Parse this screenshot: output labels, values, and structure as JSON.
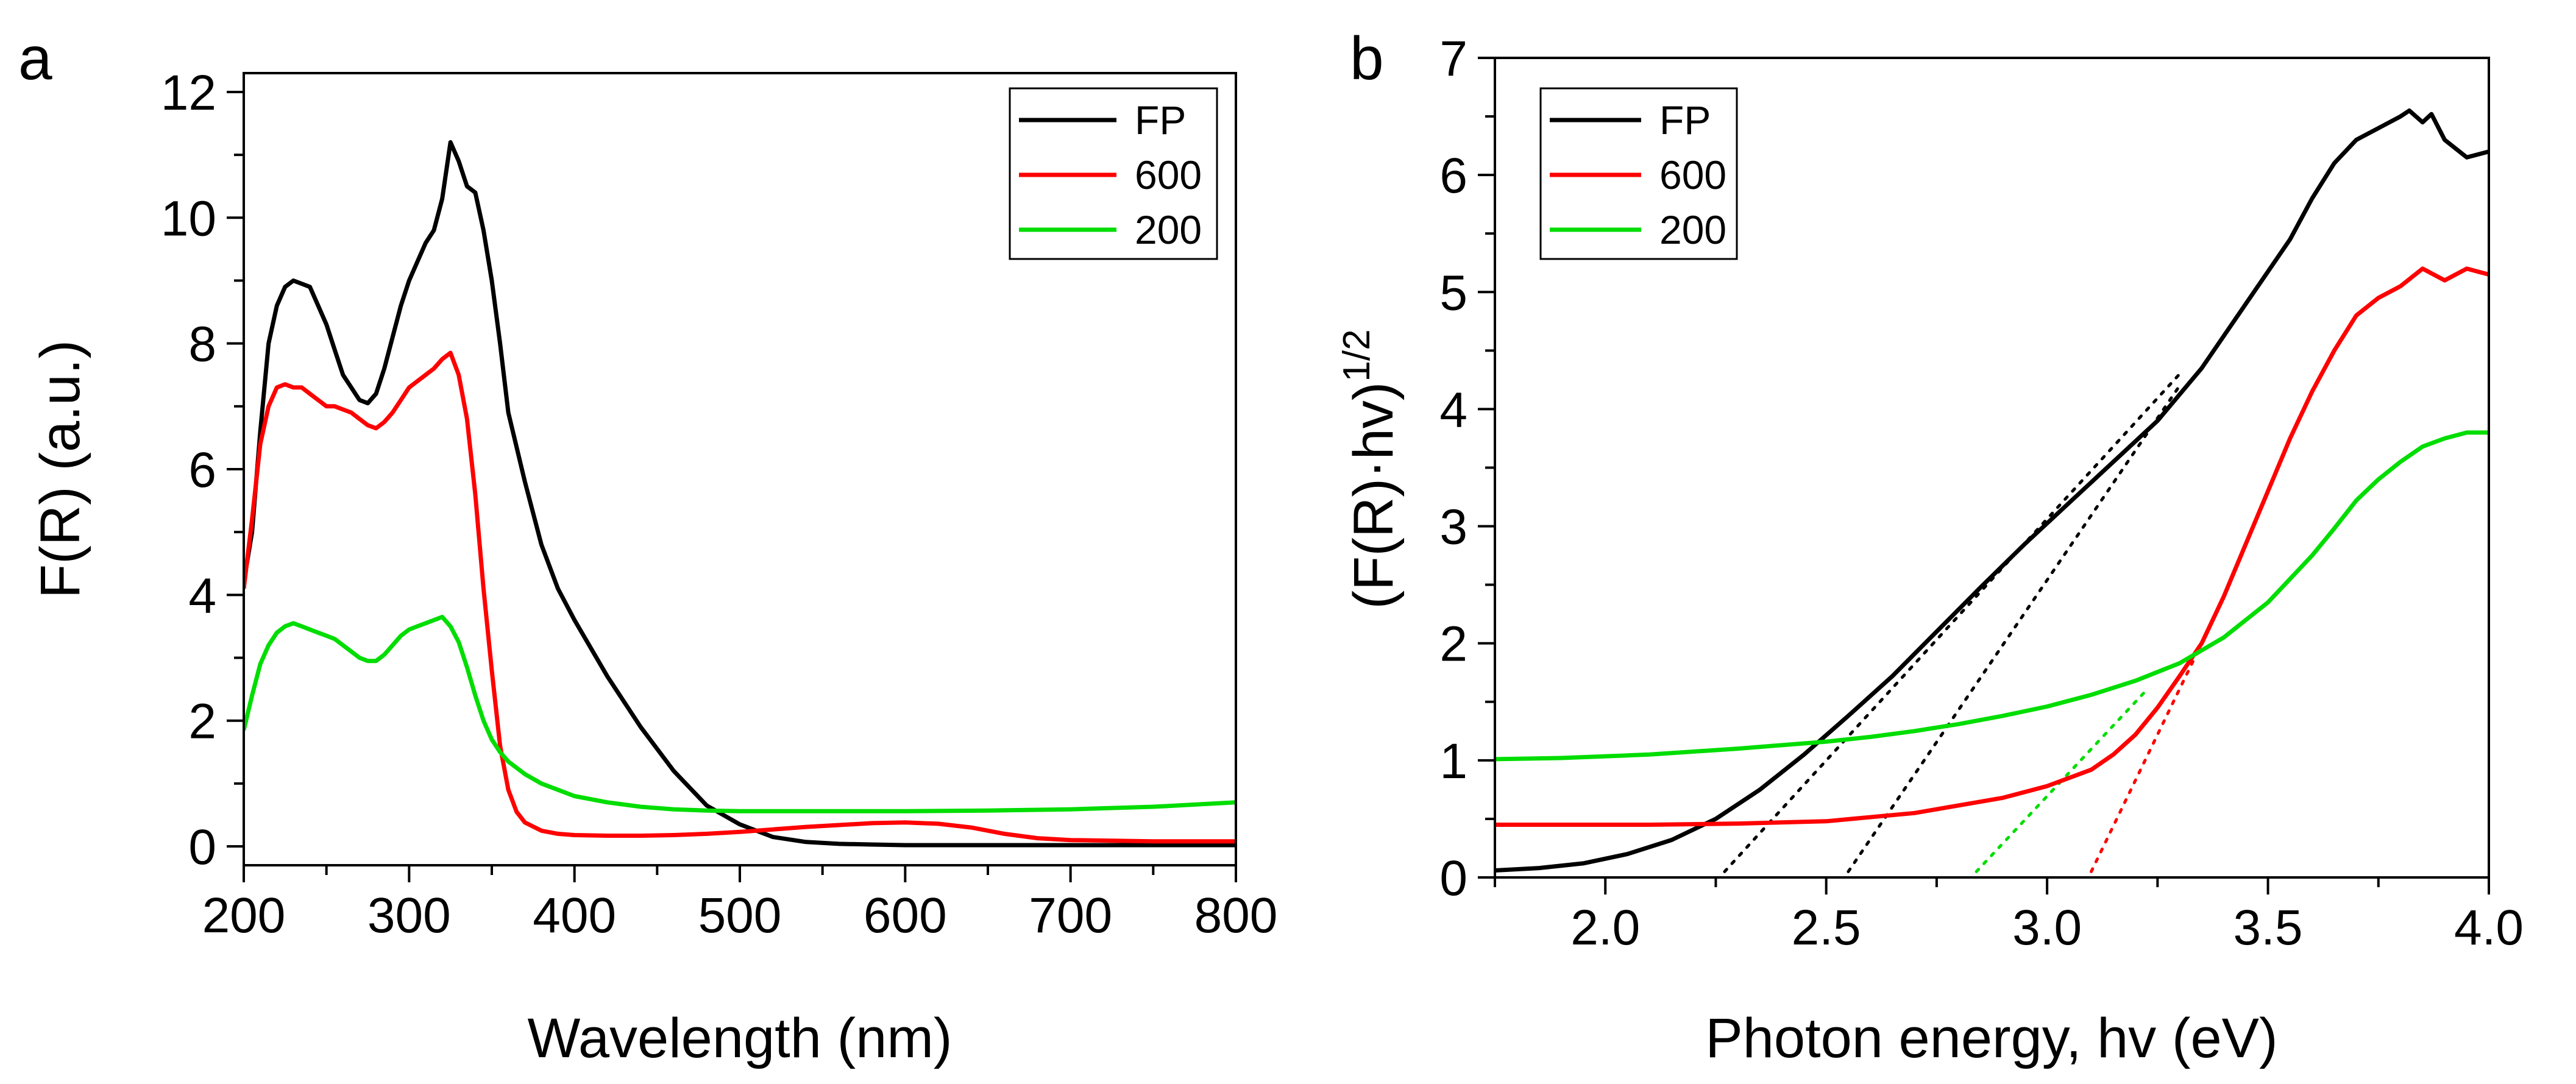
{
  "chart_data": [
    {
      "type": "line",
      "panel_label": "a",
      "title": "",
      "xlabel": "Wavelength (nm)",
      "ylabel": "F(R) (a.u.)",
      "xlim": [
        200,
        800
      ],
      "ylim": [
        -0.3,
        12.3
      ],
      "xticks": [
        200,
        300,
        400,
        500,
        600,
        700,
        800
      ],
      "yticks": [
        0,
        2,
        4,
        6,
        8,
        10,
        12
      ],
      "grid": false,
      "legend_position": "top-right",
      "series": [
        {
          "name": "FP",
          "color": "#000000",
          "x": [
            200,
            205,
            210,
            215,
            220,
            225,
            230,
            235,
            240,
            245,
            250,
            255,
            260,
            265,
            270,
            275,
            280,
            285,
            290,
            295,
            300,
            305,
            310,
            315,
            320,
            325,
            330,
            335,
            340,
            345,
            350,
            355,
            360,
            370,
            380,
            390,
            400,
            420,
            440,
            460,
            480,
            500,
            520,
            540,
            560,
            580,
            600,
            650,
            700,
            750,
            800
          ],
          "y": [
            4.2,
            5.0,
            6.6,
            8.0,
            8.6,
            8.9,
            9.0,
            8.95,
            8.9,
            8.6,
            8.3,
            7.9,
            7.5,
            7.3,
            7.1,
            7.05,
            7.2,
            7.6,
            8.1,
            8.6,
            9.0,
            9.3,
            9.6,
            9.8,
            10.3,
            11.2,
            10.9,
            10.5,
            10.4,
            9.8,
            9.0,
            8.0,
            6.9,
            5.8,
            4.8,
            4.1,
            3.6,
            2.7,
            1.9,
            1.2,
            0.65,
            0.35,
            0.15,
            0.07,
            0.04,
            0.03,
            0.02,
            0.02,
            0.02,
            0.02,
            0.02
          ]
        },
        {
          "name": "600",
          "color": "#ff0000",
          "x": [
            200,
            205,
            210,
            215,
            220,
            225,
            230,
            235,
            240,
            245,
            250,
            255,
            260,
            265,
            270,
            275,
            280,
            285,
            290,
            295,
            300,
            305,
            310,
            315,
            320,
            325,
            330,
            335,
            340,
            345,
            350,
            355,
            360,
            365,
            370,
            380,
            390,
            400,
            420,
            440,
            460,
            480,
            500,
            520,
            540,
            560,
            580,
            600,
            620,
            640,
            660,
            680,
            700,
            750,
            800
          ],
          "y": [
            4.1,
            5.2,
            6.4,
            7.0,
            7.3,
            7.35,
            7.3,
            7.3,
            7.2,
            7.1,
            7.0,
            7.0,
            6.95,
            6.9,
            6.8,
            6.7,
            6.65,
            6.75,
            6.9,
            7.1,
            7.3,
            7.4,
            7.5,
            7.6,
            7.75,
            7.85,
            7.5,
            6.8,
            5.6,
            4.1,
            2.8,
            1.6,
            0.9,
            0.55,
            0.38,
            0.25,
            0.2,
            0.18,
            0.17,
            0.17,
            0.18,
            0.2,
            0.23,
            0.27,
            0.31,
            0.34,
            0.37,
            0.38,
            0.36,
            0.3,
            0.2,
            0.13,
            0.1,
            0.08,
            0.08
          ]
        },
        {
          "name": "200",
          "color": "#00dd00",
          "x": [
            200,
            205,
            210,
            215,
            220,
            225,
            230,
            235,
            240,
            245,
            250,
            255,
            260,
            265,
            270,
            275,
            280,
            285,
            290,
            295,
            300,
            305,
            310,
            315,
            320,
            325,
            330,
            335,
            340,
            345,
            350,
            355,
            360,
            370,
            380,
            390,
            400,
            420,
            440,
            460,
            480,
            500,
            520,
            540,
            560,
            580,
            600,
            650,
            700,
            750,
            800
          ],
          "y": [
            1.85,
            2.4,
            2.9,
            3.2,
            3.4,
            3.5,
            3.55,
            3.5,
            3.45,
            3.4,
            3.35,
            3.3,
            3.2,
            3.1,
            3.0,
            2.95,
            2.95,
            3.05,
            3.2,
            3.35,
            3.45,
            3.5,
            3.55,
            3.6,
            3.65,
            3.5,
            3.25,
            2.85,
            2.4,
            2.0,
            1.7,
            1.5,
            1.35,
            1.15,
            1.0,
            0.9,
            0.8,
            0.7,
            0.63,
            0.59,
            0.57,
            0.56,
            0.56,
            0.56,
            0.56,
            0.56,
            0.56,
            0.57,
            0.59,
            0.63,
            0.7
          ]
        }
      ]
    },
    {
      "type": "line",
      "panel_label": "b",
      "title": "",
      "xlabel": "Photon energy, hv (eV)",
      "ylabel": "(F(R)·hv)",
      "ylabel_superscript": "1/2",
      "xlim": [
        1.75,
        4.0
      ],
      "ylim": [
        0,
        7
      ],
      "xticks": [
        "2.0",
        "2.5",
        "3.0",
        "3.5",
        "4.0"
      ],
      "yticks": [
        0,
        1,
        2,
        3,
        4,
        5,
        6,
        7
      ],
      "grid": false,
      "legend_position": "top-left",
      "series": [
        {
          "name": "FP",
          "color": "#000000",
          "x": [
            1.75,
            1.85,
            1.95,
            2.05,
            2.15,
            2.25,
            2.35,
            2.45,
            2.55,
            2.65,
            2.75,
            2.85,
            2.95,
            3.05,
            3.15,
            3.25,
            3.35,
            3.45,
            3.55,
            3.6,
            3.65,
            3.7,
            3.75,
            3.8,
            3.82,
            3.85,
            3.87,
            3.9,
            3.95,
            4.0
          ],
          "y": [
            0.06,
            0.08,
            0.12,
            0.2,
            0.32,
            0.5,
            0.75,
            1.05,
            1.38,
            1.72,
            2.1,
            2.48,
            2.85,
            3.2,
            3.55,
            3.9,
            4.35,
            4.9,
            5.45,
            5.8,
            6.1,
            6.3,
            6.4,
            6.5,
            6.55,
            6.45,
            6.52,
            6.3,
            6.15,
            6.2
          ]
        },
        {
          "name": "600",
          "color": "#ff0000",
          "x": [
            1.75,
            1.9,
            2.1,
            2.3,
            2.5,
            2.7,
            2.9,
            3.0,
            3.1,
            3.15,
            3.2,
            3.25,
            3.3,
            3.35,
            3.4,
            3.45,
            3.5,
            3.55,
            3.6,
            3.65,
            3.7,
            3.75,
            3.8,
            3.85,
            3.9,
            3.95,
            4.0
          ],
          "y": [
            0.45,
            0.45,
            0.45,
            0.46,
            0.48,
            0.55,
            0.68,
            0.78,
            0.92,
            1.05,
            1.22,
            1.45,
            1.72,
            2.0,
            2.4,
            2.85,
            3.3,
            3.75,
            4.15,
            4.5,
            4.8,
            4.95,
            5.05,
            5.2,
            5.1,
            5.2,
            5.15
          ]
        },
        {
          "name": "200",
          "color": "#00dd00",
          "x": [
            1.75,
            1.9,
            2.1,
            2.3,
            2.5,
            2.6,
            2.7,
            2.8,
            2.9,
            3.0,
            3.1,
            3.2,
            3.3,
            3.4,
            3.5,
            3.6,
            3.65,
            3.7,
            3.75,
            3.8,
            3.85,
            3.9,
            3.95,
            4.0
          ],
          "y": [
            1.01,
            1.02,
            1.05,
            1.1,
            1.16,
            1.2,
            1.25,
            1.31,
            1.38,
            1.46,
            1.56,
            1.68,
            1.83,
            2.05,
            2.35,
            2.75,
            2.98,
            3.22,
            3.4,
            3.55,
            3.68,
            3.75,
            3.8,
            3.8
          ]
        }
      ],
      "tangent_lines": [
        {
          "color": "#000000",
          "x": [
            2.27,
            3.3
          ],
          "y": [
            0.05,
            4.3
          ]
        },
        {
          "color": "#000000",
          "x": [
            2.55,
            3.3
          ],
          "y": [
            0.05,
            4.2
          ]
        },
        {
          "color": "#00dd00",
          "x": [
            2.84,
            3.22
          ],
          "y": [
            0.05,
            1.58
          ]
        },
        {
          "color": "#ff0000",
          "x": [
            3.1,
            3.35
          ],
          "y": [
            0.05,
            2.0
          ]
        }
      ]
    }
  ]
}
